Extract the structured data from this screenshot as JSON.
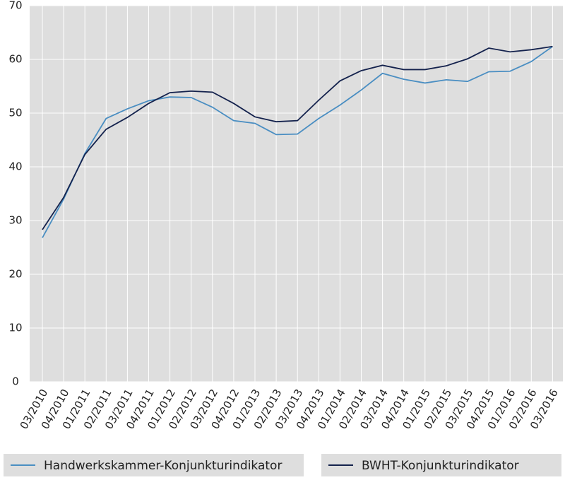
{
  "chart_data": {
    "type": "line",
    "categories": [
      "03/2010",
      "04/2010",
      "01/2011",
      "02/2011",
      "03/2011",
      "04/2011",
      "01/2012",
      "02/2012",
      "03/2012",
      "04/2012",
      "01/2013",
      "02/2013",
      "03/2013",
      "04/2013",
      "01/2014",
      "02/2014",
      "03/2014",
      "04/2014",
      "01/2015",
      "02/2015",
      "03/2015",
      "04/2015",
      "01/2016",
      "02/2016",
      "03/2016"
    ],
    "series": [
      {
        "name": "Handwerkskammer-Konjunkturindikator",
        "color": "#4a8ec2",
        "values": [
          26.8,
          34,
          42.5,
          49,
          50.8,
          52.3,
          53,
          52.9,
          51.1,
          48.6,
          48.1,
          46,
          46.1,
          49,
          51.5,
          54.3,
          57.4,
          56.3,
          55.6,
          56.2,
          55.9,
          57.7,
          57.8,
          59.6,
          62.4
        ]
      },
      {
        "name": "BWHT-Konjunkturindikator",
        "color": "#14224d",
        "values": [
          28.3,
          34.3,
          42.3,
          47,
          49.2,
          51.8,
          53.8,
          54.1,
          53.9,
          51.8,
          49.3,
          48.4,
          48.6,
          52.4,
          56,
          57.9,
          58.9,
          58.1,
          58.1,
          58.8,
          60.1,
          62.1,
          61.4,
          61.8,
          62.4
        ]
      }
    ],
    "ylim": [
      0,
      70
    ],
    "yticks": [
      0,
      10,
      20,
      30,
      40,
      50,
      60,
      70
    ],
    "grid": true
  }
}
